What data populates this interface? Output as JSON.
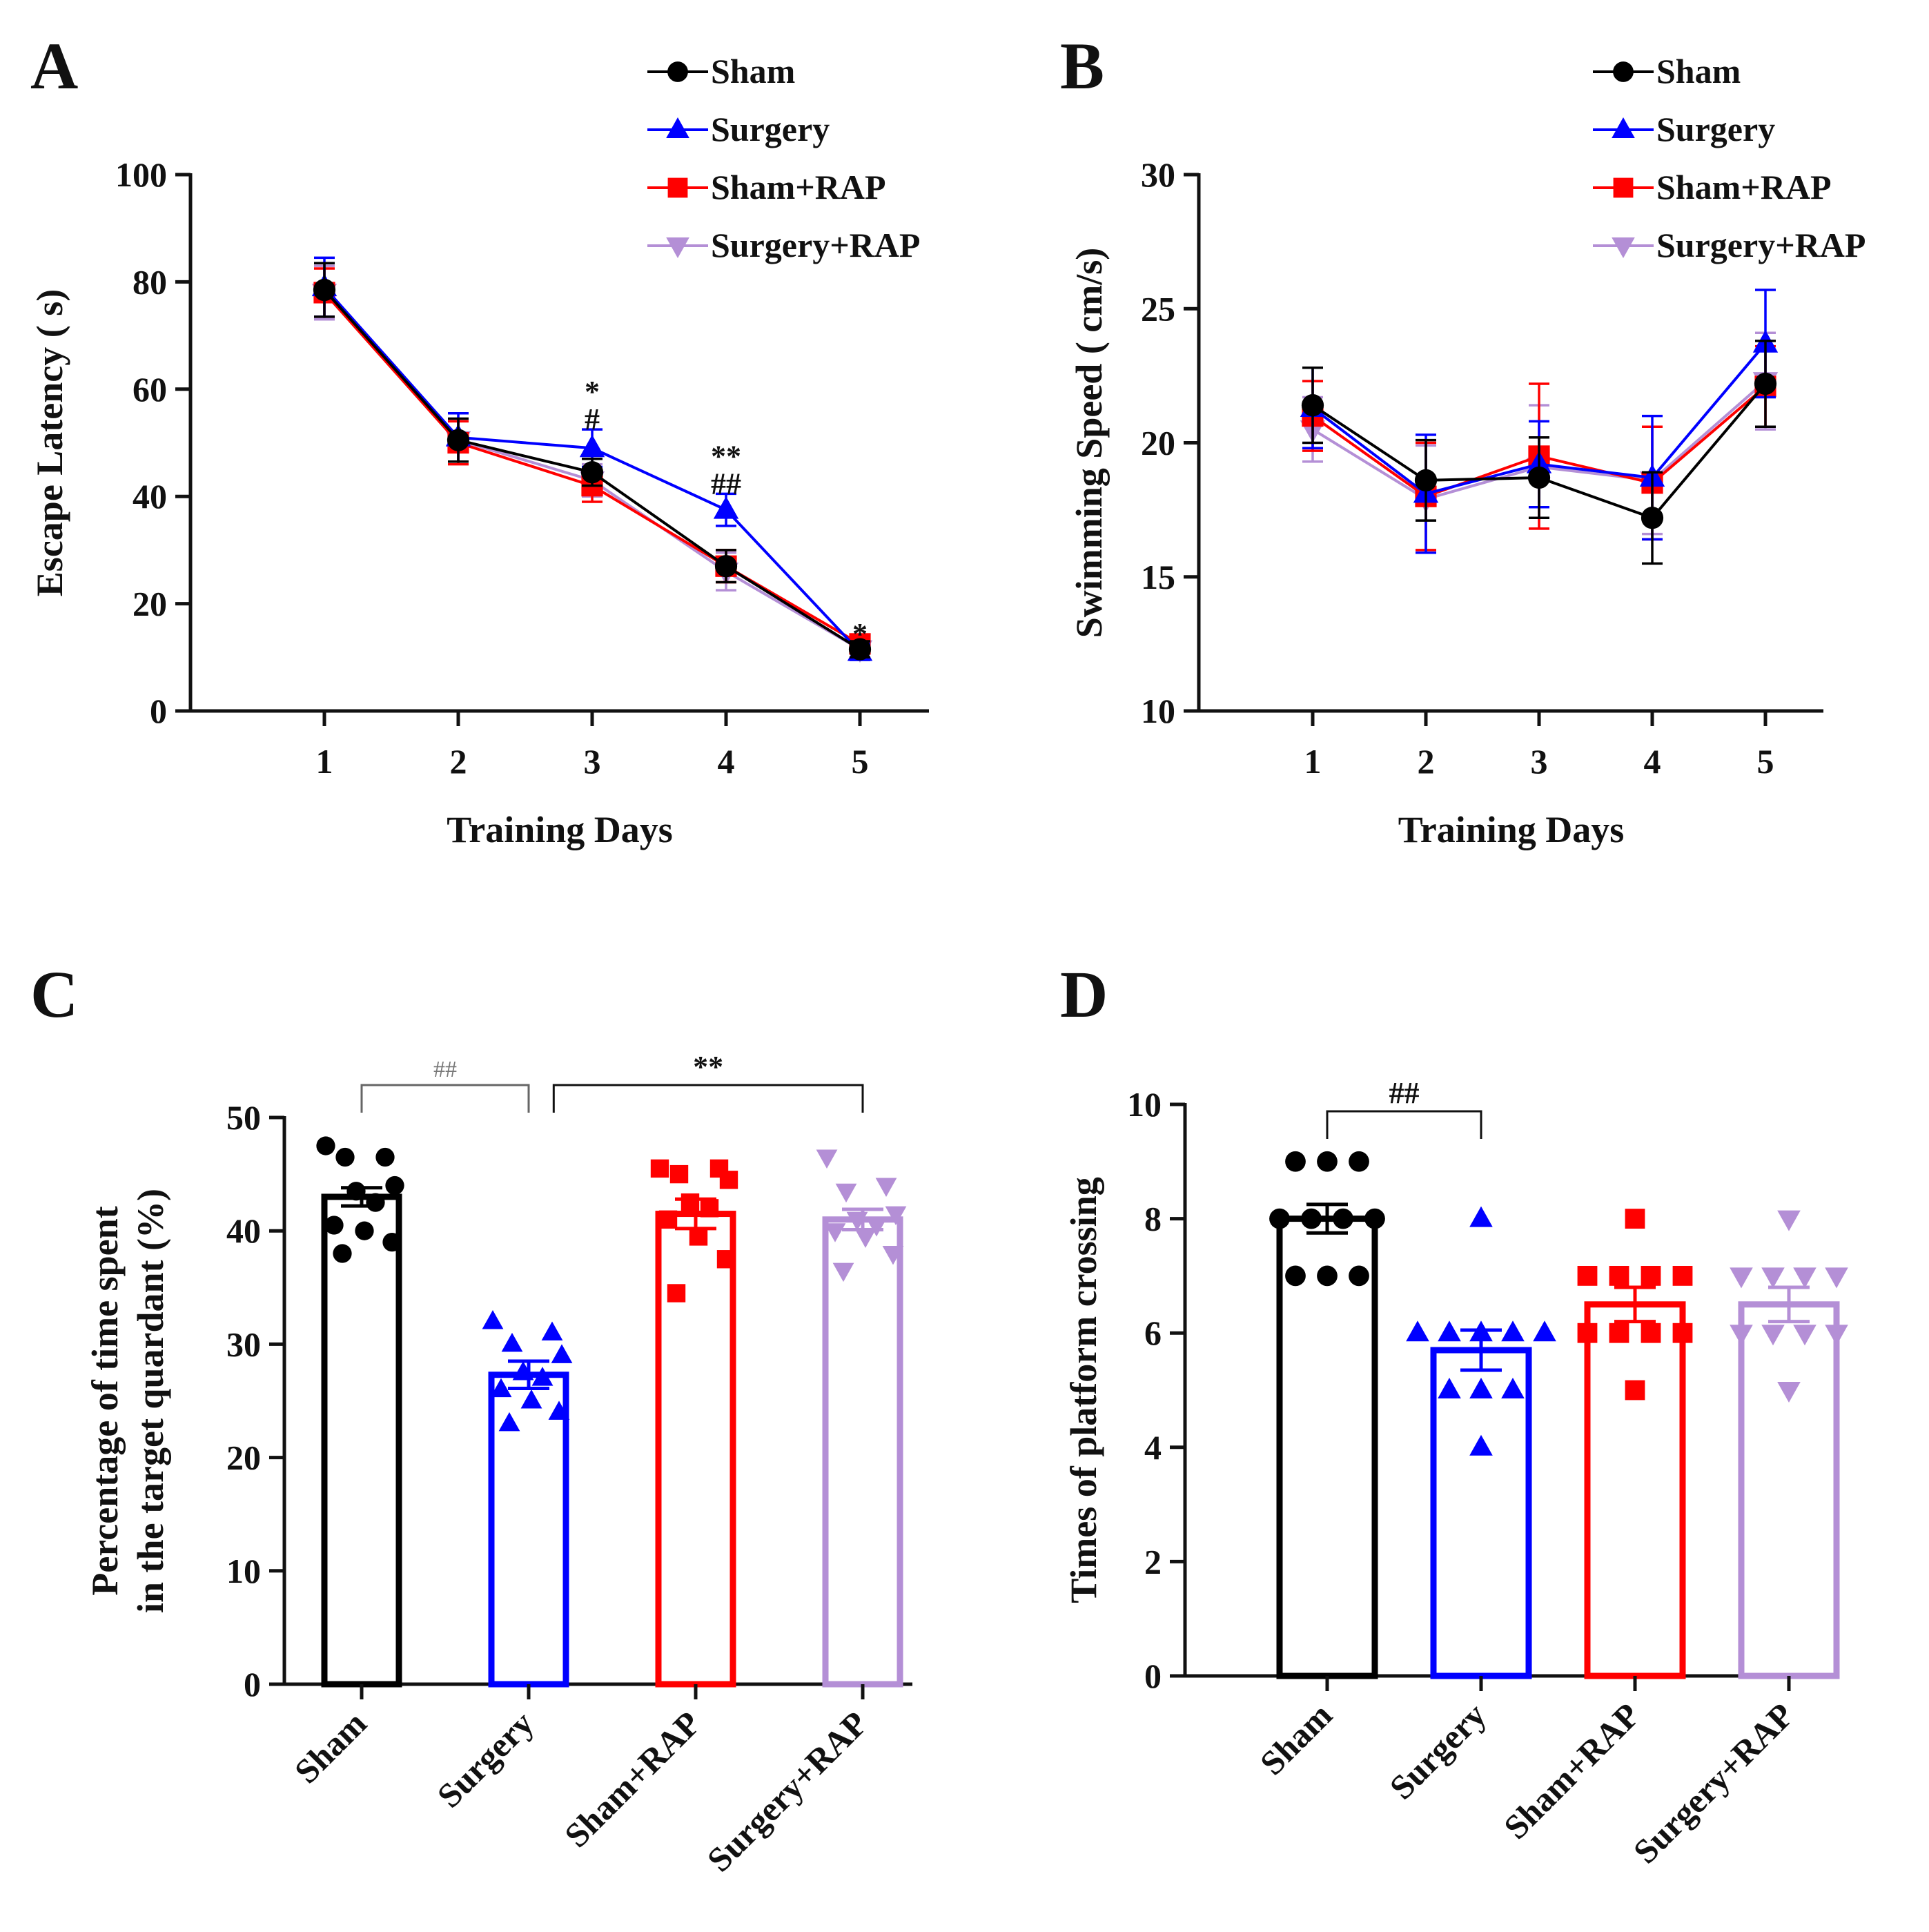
{
  "colors": {
    "Sham": "#000000",
    "Surgery": "#0000ff",
    "Sham+RAP": "#ff0000",
    "Surgery+RAP": "#b48fd6"
  },
  "markers": {
    "Sham": "circle",
    "Surgery": "triangle-up",
    "Sham+RAP": "square",
    "Surgery+RAP": "triangle-down"
  },
  "chart_data": [
    {
      "panel": "A",
      "type": "line",
      "xlabel": "Training Days",
      "ylabel": "Escape Latency ( s)",
      "x": [
        1,
        2,
        3,
        4,
        5
      ],
      "ylim": [
        0,
        100
      ],
      "yticks": [
        0,
        20,
        40,
        60,
        80,
        100
      ],
      "legend": [
        "Sham",
        "Surgery",
        "Sham+RAP",
        "Surgery+RAP"
      ],
      "series": [
        {
          "name": "Sham",
          "values": [
            78.5,
            50.5,
            44.5,
            27,
            11.5
          ],
          "errors": [
            5,
            4,
            2.5,
            3,
            1.5
          ]
        },
        {
          "name": "Surgery",
          "values": [
            79,
            51,
            49,
            37.5,
            11
          ],
          "errors": [
            5.5,
            4.5,
            3.5,
            3,
            1.5
          ]
        },
        {
          "name": "Sham+RAP",
          "values": [
            78,
            50,
            42,
            27,
            12.5
          ],
          "errors": [
            4.5,
            4,
            3,
            3,
            1.5
          ]
        },
        {
          "name": "Surgery+RAP",
          "values": [
            78,
            50.5,
            43,
            26,
            11.5
          ],
          "errors": [
            5,
            4,
            3,
            3.5,
            1.5
          ]
        }
      ],
      "annotations": [
        {
          "x": 3,
          "lines": [
            "*",
            "#"
          ]
        },
        {
          "x": 4,
          "lines": [
            "**",
            "##"
          ]
        },
        {
          "x": 5,
          "lines": [
            "*"
          ]
        }
      ]
    },
    {
      "panel": "B",
      "type": "line",
      "xlabel": "Training Days",
      "ylabel": "Swimming Speed ( cm/s)",
      "x": [
        1,
        2,
        3,
        4,
        5
      ],
      "ylim": [
        10,
        30
      ],
      "yticks": [
        10,
        15,
        20,
        25,
        30
      ],
      "legend": [
        "Sham",
        "Surgery",
        "Sham+RAP",
        "Surgery+RAP"
      ],
      "series": [
        {
          "name": "Sham",
          "values": [
            21.4,
            18.6,
            18.7,
            17.2,
            22.2
          ],
          "errors": [
            1.4,
            1.5,
            1.5,
            1.7,
            1.6
          ]
        },
        {
          "name": "Surgery",
          "values": [
            21.3,
            18.1,
            19.2,
            18.7,
            23.7
          ],
          "errors": [
            1.5,
            2.2,
            1.6,
            2.3,
            2
          ]
        },
        {
          "name": "Sham+RAP",
          "values": [
            21,
            18,
            19.5,
            18.5,
            22.1
          ],
          "errors": [
            1.3,
            2,
            2.7,
            2.1,
            1.5
          ]
        },
        {
          "name": "Surgery+RAP",
          "values": [
            20.5,
            17.9,
            19.1,
            18.6,
            22.3
          ],
          "errors": [
            1.2,
            2,
            2.3,
            2,
            1.8
          ]
        }
      ]
    },
    {
      "panel": "C",
      "type": "bar",
      "ylabel_lines": [
        "Percentage of time spent",
        "in the target quardant (%)"
      ],
      "categories": [
        "Sham",
        "Surgery",
        "Sham+RAP",
        "Surgery+RAP"
      ],
      "values": [
        43,
        27.3,
        41.5,
        41
      ],
      "errors": [
        0.8,
        1.2,
        1.3,
        0.9
      ],
      "points": [
        [
          47.5,
          46.5,
          46.5,
          44,
          43.5,
          42.5,
          40.5,
          40,
          39,
          38
        ],
        [
          32,
          31,
          30,
          29,
          27.5,
          27,
          26,
          25,
          24,
          23
        ],
        [
          45.5,
          45.5,
          45,
          44.5,
          42.5,
          42,
          41,
          39.5,
          37.5,
          34.5
        ],
        [
          46.5,
          44,
          43.5,
          41.5,
          41,
          40.5,
          40,
          39.5,
          38,
          36.5
        ]
      ],
      "ylim": [
        0,
        50
      ],
      "yticks": [
        0,
        10,
        20,
        30,
        40,
        50
      ],
      "brackets": [
        {
          "from": 0,
          "to": 1,
          "label": "##",
          "style": "gray"
        },
        {
          "from": 1.15,
          "to": 3,
          "label": "**",
          "style": "black"
        }
      ]
    },
    {
      "panel": "D",
      "type": "bar",
      "ylabel": "Times of platform crossing",
      "categories": [
        "Sham",
        "Surgery",
        "Sham+RAP",
        "Surgery+RAP"
      ],
      "values": [
        8,
        5.7,
        6.5,
        6.5
      ],
      "errors": [
        0.25,
        0.35,
        0.3,
        0.3
      ],
      "points": [
        [
          9,
          9,
          9,
          8,
          8,
          8,
          8,
          7,
          7,
          7
        ],
        [
          8,
          6,
          6,
          6,
          6,
          6,
          5,
          5,
          5,
          4
        ],
        [
          8,
          7,
          7,
          7,
          7,
          6,
          6,
          6,
          6,
          5
        ],
        [
          8,
          7,
          7,
          7,
          7,
          6,
          6,
          6,
          6,
          5
        ]
      ],
      "ylim": [
        0,
        10
      ],
      "yticks": [
        0,
        2,
        4,
        6,
        8,
        10
      ],
      "brackets": [
        {
          "from": 0,
          "to": 1,
          "label": "##",
          "style": "black"
        }
      ]
    }
  ]
}
